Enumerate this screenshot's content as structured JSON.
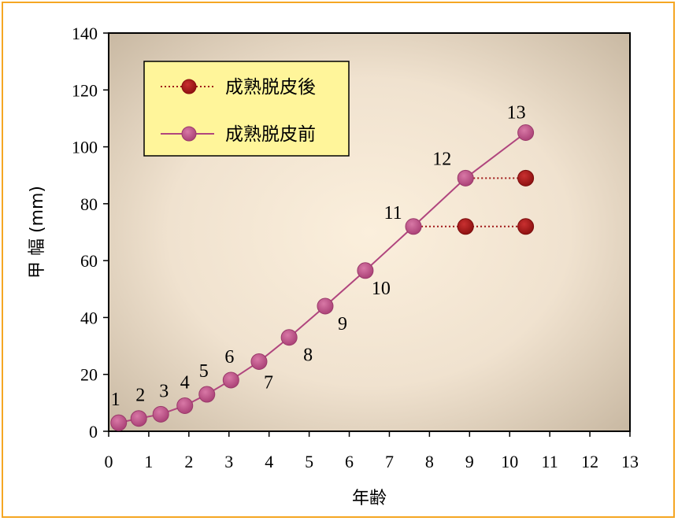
{
  "chart_data": {
    "type": "line",
    "xlabel": "年齢",
    "ylabel": "甲 幅 (mm)",
    "xlim": [
      0,
      13
    ],
    "ylim": [
      0,
      140
    ],
    "xticks": [
      "0",
      "1",
      "2",
      "3",
      "4",
      "5",
      "6",
      "7",
      "8",
      "9",
      "10",
      "11",
      "12",
      "13"
    ],
    "yticks": [
      "0",
      "20",
      "40",
      "60",
      "80",
      "100",
      "120",
      "140"
    ],
    "legend_position": "top-left",
    "series": [
      {
        "name": "成熟脱皮前",
        "style": "solid",
        "color": "#b0457e",
        "marker_color": "#c0507f",
        "points": [
          {
            "x": 0.25,
            "y": 3,
            "label": "1"
          },
          {
            "x": 0.75,
            "y": 4.5,
            "label": "2"
          },
          {
            "x": 1.3,
            "y": 6,
            "label": "3"
          },
          {
            "x": 1.9,
            "y": 9,
            "label": "4"
          },
          {
            "x": 2.45,
            "y": 13,
            "label": "5"
          },
          {
            "x": 3.05,
            "y": 18,
            "label": "6"
          },
          {
            "x": 3.75,
            "y": 24.5,
            "label": "7"
          },
          {
            "x": 4.5,
            "y": 33,
            "label": "8"
          },
          {
            "x": 5.4,
            "y": 44,
            "label": "9"
          },
          {
            "x": 6.4,
            "y": 56.5,
            "label": "10"
          },
          {
            "x": 7.6,
            "y": 72,
            "label": "11"
          },
          {
            "x": 8.9,
            "y": 89,
            "label": "12"
          },
          {
            "x": 10.4,
            "y": 105,
            "label": "13"
          }
        ]
      },
      {
        "name": "成熟脱皮後",
        "style": "dotted",
        "color": "#a01818",
        "marker_color": "#a51515",
        "segments": [
          [
            {
              "x": 7.6,
              "y": 72
            },
            {
              "x": 10.4,
              "y": 72
            }
          ],
          [
            {
              "x": 8.9,
              "y": 89
            },
            {
              "x": 10.4,
              "y": 89
            }
          ]
        ],
        "points": [
          {
            "x": 8.9,
            "y": 72
          },
          {
            "x": 10.4,
            "y": 72
          },
          {
            "x": 10.4,
            "y": 89
          }
        ]
      }
    ]
  }
}
